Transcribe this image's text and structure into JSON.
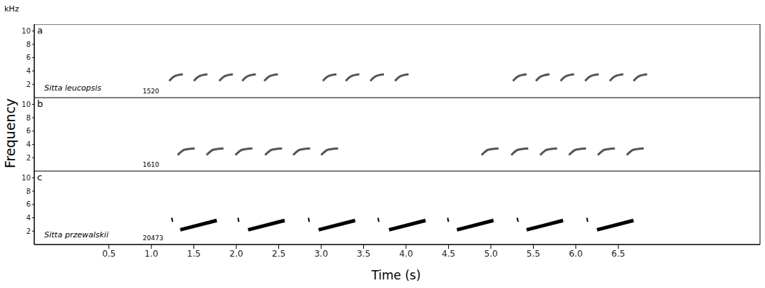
{
  "y_unit": "kHz",
  "y_label": "Frequency",
  "x_label": "Time (s)",
  "chart_data": [
    {
      "type": "line",
      "panel": "a",
      "species": "Sitta leucopsis",
      "recording": "1520",
      "color": "#555555",
      "xlim": [
        -0.38,
        8.17
      ],
      "ylim": [
        0,
        11
      ],
      "yticks": [
        2,
        4,
        6,
        8,
        10
      ],
      "tick_labels": "y",
      "notes": [
        {
          "t": [
            1.21,
            1.27,
            1.37
          ],
          "f": [
            2.5,
            3.2,
            3.5
          ]
        },
        {
          "t": [
            1.5,
            1.56,
            1.66
          ],
          "f": [
            2.5,
            3.2,
            3.5
          ]
        },
        {
          "t": [
            1.8,
            1.86,
            1.96
          ],
          "f": [
            2.5,
            3.2,
            3.5
          ]
        },
        {
          "t": [
            2.07,
            2.13,
            2.23
          ],
          "f": [
            2.5,
            3.2,
            3.5
          ]
        },
        {
          "t": [
            2.33,
            2.39,
            2.49
          ],
          "f": [
            2.5,
            3.2,
            3.5
          ]
        },
        {
          "t": [
            3.02,
            3.08,
            3.18
          ],
          "f": [
            2.5,
            3.2,
            3.5
          ]
        },
        {
          "t": [
            3.29,
            3.35,
            3.45
          ],
          "f": [
            2.5,
            3.2,
            3.5
          ]
        },
        {
          "t": [
            3.58,
            3.64,
            3.74
          ],
          "f": [
            2.5,
            3.2,
            3.5
          ]
        },
        {
          "t": [
            3.87,
            3.93,
            4.03
          ],
          "f": [
            2.5,
            3.2,
            3.5
          ]
        },
        {
          "t": [
            5.26,
            5.32,
            5.42
          ],
          "f": [
            2.5,
            3.2,
            3.5
          ]
        },
        {
          "t": [
            5.53,
            5.59,
            5.69
          ],
          "f": [
            2.5,
            3.2,
            3.5
          ]
        },
        {
          "t": [
            5.82,
            5.88,
            5.98
          ],
          "f": [
            2.5,
            3.2,
            3.5
          ]
        },
        {
          "t": [
            6.11,
            6.17,
            6.27
          ],
          "f": [
            2.5,
            3.2,
            3.5
          ]
        },
        {
          "t": [
            6.4,
            6.46,
            6.56
          ],
          "f": [
            2.5,
            3.2,
            3.5
          ]
        },
        {
          "t": [
            6.68,
            6.74,
            6.84
          ],
          "f": [
            2.5,
            3.2,
            3.5
          ]
        }
      ]
    },
    {
      "type": "line",
      "panel": "b",
      "recording": "1610",
      "color": "#555555",
      "xlim": [
        -0.38,
        8.17
      ],
      "ylim": [
        0,
        11
      ],
      "yticks": [
        2,
        4,
        6,
        8,
        10
      ],
      "tick_labels": "y",
      "notes": [
        {
          "t": [
            1.31,
            1.39,
            1.51
          ],
          "f": [
            2.4,
            3.2,
            3.4
          ]
        },
        {
          "t": [
            1.65,
            1.73,
            1.85
          ],
          "f": [
            2.4,
            3.2,
            3.4
          ]
        },
        {
          "t": [
            1.99,
            2.07,
            2.19
          ],
          "f": [
            2.4,
            3.2,
            3.4
          ]
        },
        {
          "t": [
            2.34,
            2.42,
            2.54
          ],
          "f": [
            2.4,
            3.2,
            3.4
          ]
        },
        {
          "t": [
            2.67,
            2.75,
            2.87
          ],
          "f": [
            2.4,
            3.2,
            3.4
          ]
        },
        {
          "t": [
            3.0,
            3.08,
            3.2
          ],
          "f": [
            2.4,
            3.2,
            3.4
          ]
        },
        {
          "t": [
            4.89,
            4.97,
            5.09
          ],
          "f": [
            2.4,
            3.2,
            3.4
          ]
        },
        {
          "t": [
            5.24,
            5.32,
            5.44
          ],
          "f": [
            2.4,
            3.2,
            3.4
          ]
        },
        {
          "t": [
            5.58,
            5.66,
            5.78
          ],
          "f": [
            2.4,
            3.2,
            3.4
          ]
        },
        {
          "t": [
            5.92,
            6.0,
            6.12
          ],
          "f": [
            2.4,
            3.2,
            3.4
          ]
        },
        {
          "t": [
            6.26,
            6.34,
            6.46
          ],
          "f": [
            2.4,
            3.2,
            3.4
          ]
        },
        {
          "t": [
            6.6,
            6.68,
            6.8
          ],
          "f": [
            2.4,
            3.2,
            3.4
          ]
        }
      ]
    },
    {
      "type": "line",
      "panel": "c",
      "species": "Sitta przewalskii",
      "recording": "20473",
      "color": "#000000",
      "xlim": [
        -0.38,
        8.17
      ],
      "ylim": [
        0,
        11
      ],
      "yticks": [
        2,
        4,
        6,
        8,
        10
      ],
      "tick_labels": true,
      "xticks": [
        0.5,
        {
          "value": 1,
          "label": "1.0"
        },
        1.5,
        {
          "value": 2,
          "label": "2.0"
        },
        2.5,
        {
          "value": 3,
          "label": "3.0"
        },
        3.5,
        {
          "value": 4,
          "label": "4.0"
        },
        4.5,
        {
          "value": 5,
          "label": "5.0"
        },
        5.5,
        {
          "value": 6,
          "label": "6.0"
        },
        6.5
      ],
      "notes": [
        {
          "t": [
            1.24,
            1.25
          ],
          "f": [
            4.0,
            3.4
          ]
        },
        {
          "t": [
            1.34,
            1.77
          ],
          "f": [
            2.2,
            3.6
          ]
        },
        {
          "t": [
            2.02,
            2.03
          ],
          "f": [
            4.0,
            3.4
          ]
        },
        {
          "t": [
            2.14,
            2.57
          ],
          "f": [
            2.2,
            3.6
          ]
        },
        {
          "t": [
            2.85,
            2.86
          ],
          "f": [
            4.0,
            3.4
          ]
        },
        {
          "t": [
            2.97,
            3.4
          ],
          "f": [
            2.2,
            3.6
          ]
        },
        {
          "t": [
            3.67,
            3.68
          ],
          "f": [
            4.0,
            3.4
          ]
        },
        {
          "t": [
            3.8,
            4.23
          ],
          "f": [
            2.2,
            3.6
          ]
        },
        {
          "t": [
            4.49,
            4.5
          ],
          "f": [
            4.0,
            3.4
          ]
        },
        {
          "t": [
            4.6,
            5.03
          ],
          "f": [
            2.2,
            3.6
          ]
        },
        {
          "t": [
            5.31,
            5.32
          ],
          "f": [
            4.0,
            3.4
          ]
        },
        {
          "t": [
            5.42,
            5.85
          ],
          "f": [
            2.2,
            3.6
          ]
        },
        {
          "t": [
            6.13,
            6.14
          ],
          "f": [
            4.0,
            3.4
          ]
        },
        {
          "t": [
            6.25,
            6.68
          ],
          "f": [
            2.2,
            3.6
          ]
        }
      ]
    }
  ]
}
